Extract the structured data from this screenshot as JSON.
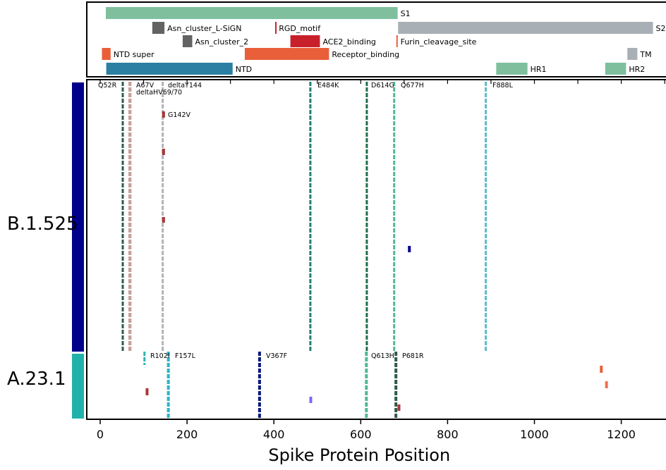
{
  "chart_data": {
    "type": "lollipop",
    "xlabel": "Spike Protein Position",
    "xlim": [
      -30,
      1310
    ],
    "xticks": [
      0,
      200,
      400,
      600,
      800,
      1000,
      1200
    ],
    "domains": [
      {
        "name": "S1",
        "start": 13,
        "end": 685,
        "color": "#7fbf9e",
        "row": 1
      },
      {
        "name": "S2",
        "start": 686,
        "end": 1273,
        "color": "#a8b0b5",
        "row": 2
      },
      {
        "name": "Asn_cluster_L-SiGN",
        "start": 120,
        "end": 148,
        "color": "#636363",
        "row": 2
      },
      {
        "name": "RGD_motif",
        "start": 403,
        "end": 405,
        "color": "#c8202a",
        "row": 2
      },
      {
        "name": "Asn_cluster_2",
        "start": 190,
        "end": 212,
        "color": "#636363",
        "row": 3
      },
      {
        "name": "ACE2_binding",
        "start": 438,
        "end": 506,
        "color": "#c8202a",
        "row": 3
      },
      {
        "name": "Furin_cleavage_site",
        "start": 682,
        "end": 685,
        "color": "#e85f3a",
        "row": 3
      },
      {
        "name": "NTD super",
        "start": 4,
        "end": 24,
        "color": "#e85f3a",
        "row": 4
      },
      {
        "name": "Receptor_binding",
        "start": 333,
        "end": 527,
        "color": "#e85f3a",
        "row": 4
      },
      {
        "name": "TM",
        "start": 1214,
        "end": 1237,
        "color": "#a8b0b5",
        "row": 4
      },
      {
        "name": "NTD",
        "start": 14,
        "end": 305,
        "color": "#2a7fa3",
        "row": 5
      },
      {
        "name": "HR1",
        "start": 912,
        "end": 984,
        "color": "#7fbf9e",
        "row": 5
      },
      {
        "name": "HR2",
        "start": 1163,
        "end": 1211,
        "color": "#7fbf9e",
        "row": 5
      }
    ],
    "groups": [
      {
        "name": "B.1.525",
        "color": "#00008b",
        "mutations": [
          {
            "label": "Q52R",
            "position": 52,
            "color": "#2f5a4a"
          },
          {
            "label": "A67V",
            "position": 67,
            "color": "#c9a09a"
          },
          {
            "label": "deltaHV69/70",
            "position": 70,
            "color": "#c9a09a"
          },
          {
            "label": "deltaY144",
            "position": 144,
            "color": "#b0b4b8"
          },
          {
            "label": "E484K",
            "position": 484,
            "color": "#1f7f6f"
          },
          {
            "label": "D614G",
            "position": 614,
            "color": "#1e6e4a"
          },
          {
            "label": "Q677H",
            "position": 677,
            "color": "#4fb89a"
          },
          {
            "label": "F888L",
            "position": 888,
            "color": "#5bbccc"
          },
          {
            "label": "G142V",
            "position": 142,
            "color": "#a83838"
          }
        ]
      },
      {
        "name": "A.23.1",
        "color": "#20b2aa",
        "mutations": [
          {
            "label": "R102I",
            "position": 102,
            "color": "#2ab5b5"
          },
          {
            "label": "F157L",
            "position": 157,
            "color": "#2ab5c5"
          },
          {
            "label": "V367F",
            "position": 367,
            "color": "#0a1a7a"
          },
          {
            "label": "Q613H",
            "position": 613,
            "color": "#4fb89a"
          },
          {
            "label": "P681R",
            "position": 681,
            "color": "#2f5a4a"
          }
        ]
      }
    ]
  }
}
